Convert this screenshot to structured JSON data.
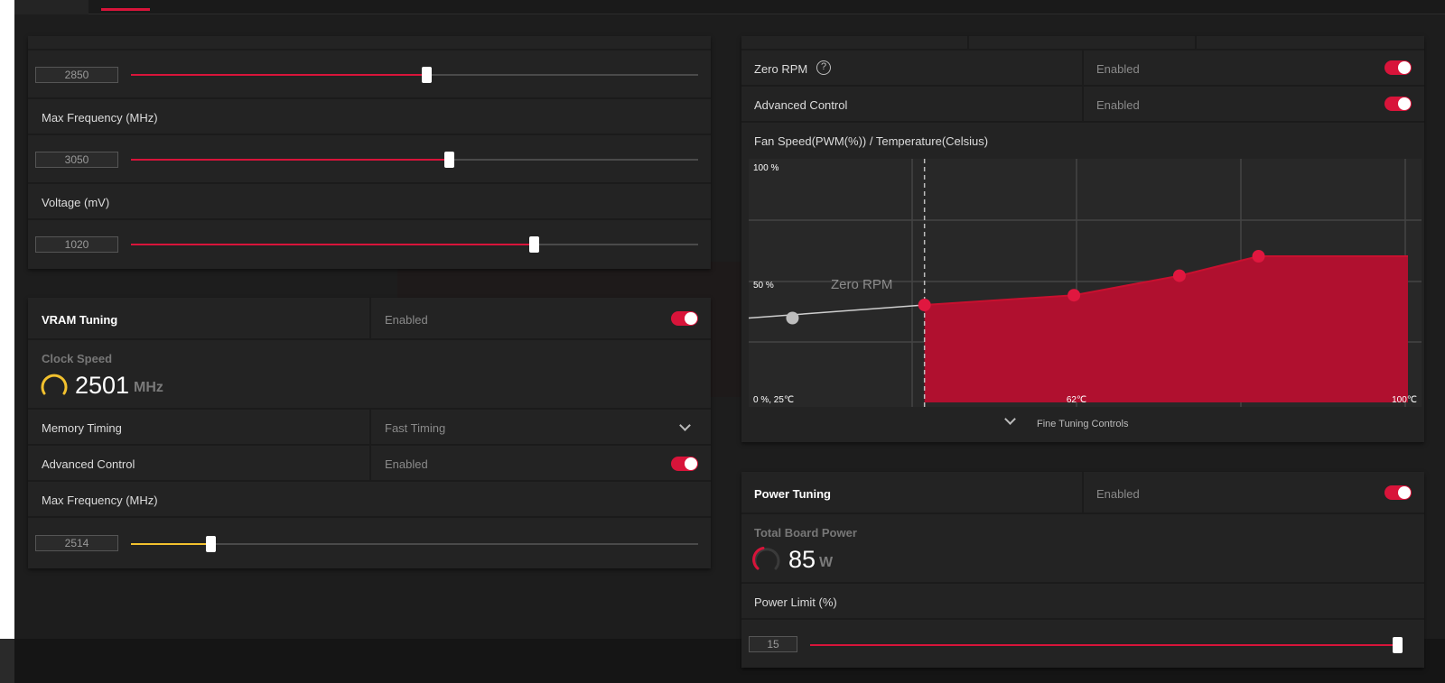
{
  "core": {
    "min_freq_value": "2850",
    "min_freq_percent": 52,
    "max_freq_label": "Max Frequency (MHz)",
    "max_freq_value": "3050",
    "max_freq_percent": 56,
    "voltage_label": "Voltage (mV)",
    "voltage_value": "1020",
    "voltage_percent": 71
  },
  "vram": {
    "title": "VRAM Tuning",
    "status": "Enabled",
    "clock_label": "Clock Speed",
    "clock_value": "2501",
    "clock_unit": "MHz",
    "memory_timing_label": "Memory Timing",
    "memory_timing_value": "Fast Timing",
    "advanced_label": "Advanced Control",
    "advanced_status": "Enabled",
    "max_freq_label": "Max Frequency (MHz)",
    "max_freq_value": "2514",
    "max_freq_percent": 14
  },
  "fan": {
    "zero_rpm_label": "Zero RPM",
    "zero_rpm_status": "Enabled",
    "advanced_label": "Advanced Control",
    "advanced_status": "Enabled",
    "chart_title": "Fan Speed(PWM(%)) / Temperature(Celsius)",
    "fine_tuning_label": "Fine Tuning Controls"
  },
  "power": {
    "title": "Power Tuning",
    "status": "Enabled",
    "tbp_label": "Total Board Power",
    "tbp_value": "85",
    "tbp_unit": "W",
    "limit_label": "Power Limit (%)",
    "limit_value": "15",
    "limit_percent": 100
  },
  "colors": {
    "accent": "#d8143a",
    "vram_accent": "#f2c12e"
  },
  "chart_data": {
    "type": "area",
    "title": "",
    "xlabel": "",
    "ylabel": "",
    "y_tick_labels": [
      "100 %",
      "50 %"
    ],
    "x_tick_labels": [
      "62℃",
      "100℃"
    ],
    "origin_label": "0 %, 25℃",
    "annotation": "Zero RPM",
    "xlim": [
      25,
      100
    ],
    "ylim": [
      0,
      100
    ],
    "zero_rpm_stop_temp": 45,
    "points": [
      {
        "x": 45,
        "y": 40
      },
      {
        "x": 62,
        "y": 44
      },
      {
        "x": 74,
        "y": 52
      },
      {
        "x": 83,
        "y": 60
      }
    ],
    "zero_rpm_point": {
      "x": 27,
      "y": 35
    },
    "grid": true
  }
}
